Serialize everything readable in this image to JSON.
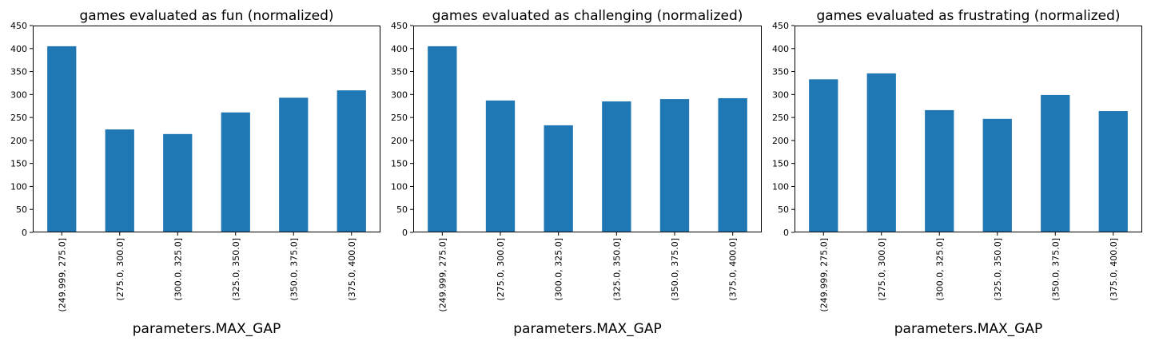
{
  "chart_data": [
    {
      "type": "bar",
      "title": "games evaluated as fun (normalized)",
      "xlabel": "parameters.MAX_GAP",
      "ylabel": "",
      "categories": [
        "(249.999, 275.0]",
        "(275.0, 300.0]",
        "(300.0, 325.0]",
        "(325.0, 350.0]",
        "(350.0, 375.0]",
        "(375.0, 400.0]"
      ],
      "values": [
        405,
        224,
        214,
        261,
        293,
        309
      ],
      "ylim": [
        0,
        450
      ],
      "yticks": [
        0,
        50,
        100,
        150,
        200,
        250,
        300,
        350,
        400,
        450
      ],
      "grid": false,
      "color": "#1f77b4"
    },
    {
      "type": "bar",
      "title": "games evaluated as challenging (normalized)",
      "xlabel": "parameters.MAX_GAP",
      "ylabel": "",
      "categories": [
        "(249.999, 275.0]",
        "(275.0, 300.0]",
        "(300.0, 325.0]",
        "(325.0, 350.0]",
        "(350.0, 375.0]",
        "(375.0, 400.0]"
      ],
      "values": [
        405,
        287,
        233,
        285,
        290,
        292
      ],
      "ylim": [
        0,
        450
      ],
      "yticks": [
        0,
        50,
        100,
        150,
        200,
        250,
        300,
        350,
        400,
        450
      ],
      "grid": false,
      "color": "#1f77b4"
    },
    {
      "type": "bar",
      "title": "games evaluated as frustrating (normalized)",
      "xlabel": "parameters.MAX_GAP",
      "ylabel": "",
      "categories": [
        "(249.999, 275.0]",
        "(275.0, 300.0]",
        "(300.0, 325.0]",
        "(325.0, 350.0]",
        "(350.0, 375.0]",
        "(375.0, 400.0]"
      ],
      "values": [
        333,
        346,
        266,
        247,
        299,
        264
      ],
      "ylim": [
        0,
        450
      ],
      "yticks": [
        0,
        50,
        100,
        150,
        200,
        250,
        300,
        350,
        400,
        450
      ],
      "grid": false,
      "color": "#1f77b4"
    }
  ]
}
